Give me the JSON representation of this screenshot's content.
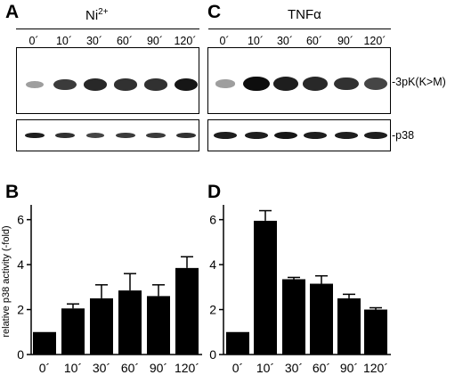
{
  "panel_letters": {
    "a": "A",
    "b": "B",
    "c": "C",
    "d": "D"
  },
  "left_condition": {
    "base": "Ni",
    "sup": "2+"
  },
  "right_condition": "TNFα",
  "time_labels": [
    "0´",
    "10´",
    "30´",
    "60´",
    "90´",
    "120´"
  ],
  "row_labels": {
    "top": "-3pK(K>M)",
    "bottom": "-p38"
  },
  "chart_data": [
    {
      "type": "bar",
      "panel": "B",
      "categories": [
        "0´",
        "10´",
        "30´",
        "60´",
        "90´",
        "120´"
      ],
      "values": [
        1.0,
        2.05,
        2.5,
        2.85,
        2.6,
        3.85
      ],
      "errors": [
        0.0,
        0.2,
        0.6,
        0.75,
        0.5,
        0.5
      ],
      "ylabel": "relative p38 activity (-fold)",
      "xlabel": "",
      "ylim": [
        0,
        6.5
      ],
      "yticks": [
        0,
        2,
        4,
        6
      ],
      "bar_color": "#000000"
    },
    {
      "type": "bar",
      "panel": "D",
      "categories": [
        "0´",
        "10´",
        "30´",
        "60´",
        "90´",
        "120´"
      ],
      "values": [
        1.0,
        5.95,
        3.35,
        3.15,
        2.5,
        2.0
      ],
      "errors": [
        0.0,
        0.45,
        0.08,
        0.35,
        0.18,
        0.08
      ],
      "ylabel": "",
      "xlabel": "",
      "ylim": [
        0,
        6.5
      ],
      "yticks": [
        0,
        2,
        4,
        6
      ],
      "bar_color": "#000000"
    }
  ],
  "blot_intensity": {
    "left_top": [
      0.2,
      0.75,
      0.85,
      0.8,
      0.8,
      0.95
    ],
    "right_top": [
      0.2,
      1.0,
      0.9,
      0.85,
      0.8,
      0.7
    ],
    "left_bottom": [
      0.9,
      0.8,
      0.7,
      0.75,
      0.75,
      0.8
    ],
    "right_bottom": [
      0.9,
      0.9,
      0.95,
      0.9,
      0.9,
      0.9
    ]
  }
}
